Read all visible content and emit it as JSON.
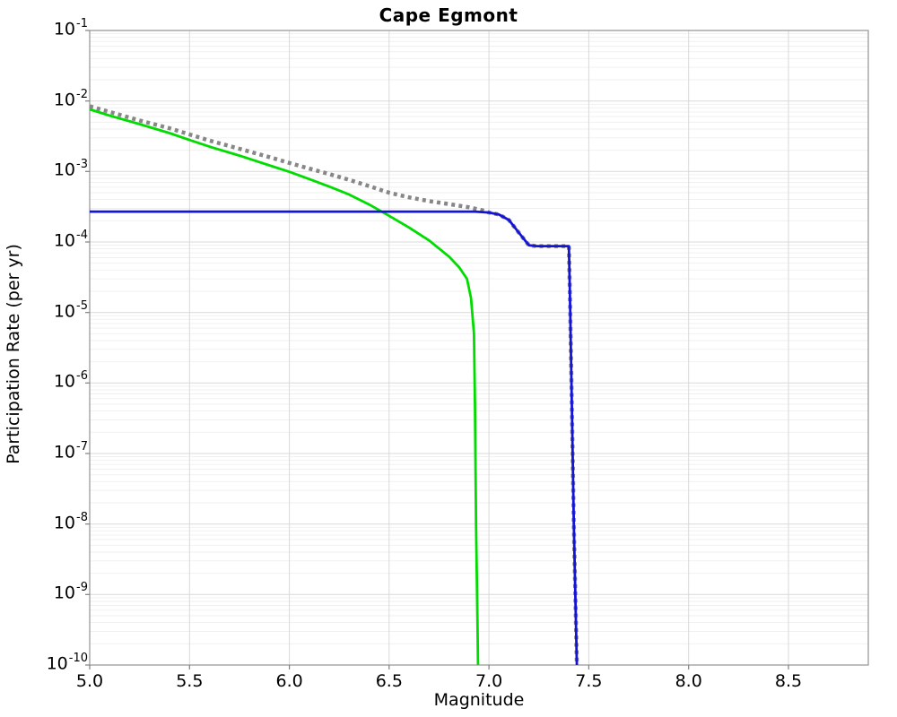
{
  "chart_data": {
    "type": "line",
    "title": "Cape Egmont",
    "xlabel": "Magnitude",
    "ylabel": "Participation Rate (per yr)",
    "x_range": [
      5.0,
      8.9
    ],
    "y_log_range": [
      -10,
      -1
    ],
    "x_ticks": [
      "5.0",
      "5.5",
      "6.0",
      "6.5",
      "7.0",
      "7.5",
      "8.0",
      "8.5"
    ],
    "y_tick_exponents": [
      -1,
      -2,
      -3,
      -4,
      -5,
      -6,
      -7,
      -8,
      -9,
      -10
    ],
    "grid": {
      "major_color": "#d9d9d9",
      "minor_color": "#efefef",
      "frame_color": "#9b9b9b",
      "tick_color": "#808080"
    },
    "series": [
      {
        "name": "background-rate-green",
        "color": "#00dc00",
        "style": "solid",
        "width": 2.8,
        "points": [
          [
            5.0,
            0.0076
          ],
          [
            5.1,
            0.0062
          ],
          [
            5.25,
            0.0047
          ],
          [
            5.4,
            0.0035
          ],
          [
            5.5,
            0.0028
          ],
          [
            5.6,
            0.00225
          ],
          [
            5.75,
            0.00168
          ],
          [
            5.9,
            0.00122
          ],
          [
            6.0,
            0.00099
          ],
          [
            6.1,
            0.00078
          ],
          [
            6.2,
            0.00061
          ],
          [
            6.3,
            0.00047
          ],
          [
            6.4,
            0.00034
          ],
          [
            6.5,
            0.000235
          ],
          [
            6.6,
            0.00016
          ],
          [
            6.7,
            0.000105
          ],
          [
            6.8,
            6.2e-05
          ],
          [
            6.85,
            4.4e-05
          ],
          [
            6.89,
            3e-05
          ],
          [
            6.91,
            1.6e-05
          ],
          [
            6.925,
            5e-06
          ],
          [
            6.93,
            5e-07
          ],
          [
            6.935,
            1e-08
          ],
          [
            6.942,
            5e-10
          ],
          [
            6.945,
            1e-10
          ]
        ]
      },
      {
        "name": "total-rate-dotted-gray",
        "color": "#878787",
        "style": "dotted",
        "width": 4.5,
        "points": [
          [
            5.0,
            0.0084
          ],
          [
            5.1,
            0.007
          ],
          [
            5.25,
            0.0053
          ],
          [
            5.4,
            0.0041
          ],
          [
            5.5,
            0.00335
          ],
          [
            5.6,
            0.00275
          ],
          [
            5.75,
            0.0021
          ],
          [
            5.9,
            0.0016
          ],
          [
            6.0,
            0.00132
          ],
          [
            6.1,
            0.0011
          ],
          [
            6.2,
            0.00092
          ],
          [
            6.3,
            0.00076
          ],
          [
            6.4,
            0.00062
          ],
          [
            6.5,
            0.0005
          ],
          [
            6.6,
            0.00043
          ],
          [
            6.7,
            0.00038
          ],
          [
            6.8,
            0.000345
          ],
          [
            6.9,
            0.00031
          ],
          [
            6.97,
            0.00028
          ],
          [
            7.0,
            0.000262
          ],
          [
            7.05,
            0.000245
          ],
          [
            7.1,
            0.000205
          ],
          [
            7.15,
            0.000135
          ],
          [
            7.2,
            9e-05
          ],
          [
            7.24,
            8.75e-05
          ],
          [
            7.4,
            8.75e-05
          ],
          [
            7.405,
            2e-05
          ],
          [
            7.415,
            5e-07
          ],
          [
            7.425,
            1e-08
          ],
          [
            7.44,
            1e-10
          ]
        ]
      },
      {
        "name": "fault-rate-blue",
        "color": "#1414d8",
        "style": "solid",
        "width": 2.8,
        "points": [
          [
            5.0,
            0.00027
          ],
          [
            6.93,
            0.00027
          ],
          [
            7.0,
            0.000262
          ],
          [
            7.05,
            0.000245
          ],
          [
            7.1,
            0.000205
          ],
          [
            7.15,
            0.000135
          ],
          [
            7.2,
            9e-05
          ],
          [
            7.24,
            8.75e-05
          ],
          [
            7.4,
            8.75e-05
          ],
          [
            7.405,
            2e-05
          ],
          [
            7.415,
            5e-07
          ],
          [
            7.425,
            1e-08
          ],
          [
            7.44,
            1e-10
          ]
        ]
      }
    ]
  }
}
